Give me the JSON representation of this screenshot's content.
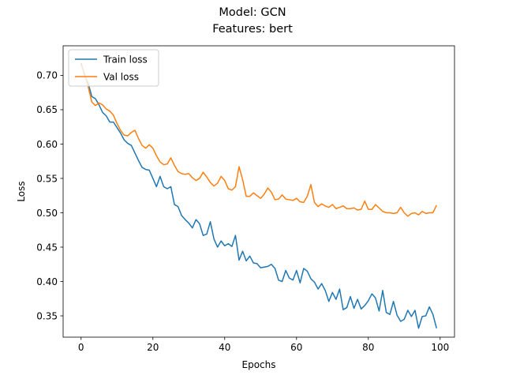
{
  "chart_data": {
    "type": "line",
    "title": "Model: GCN",
    "subtitle": "Features: bert",
    "xlabel": "Epochs",
    "ylabel": "Loss",
    "xlim": [
      -5,
      104
    ],
    "ylim": [
      0.319,
      0.743
    ],
    "xticks": [
      0,
      20,
      40,
      60,
      80,
      100
    ],
    "yticks": [
      0.35,
      0.4,
      0.45,
      0.5,
      0.55,
      0.6,
      0.65,
      0.7
    ],
    "grid": false,
    "legend_position": "top-left",
    "x": [
      0,
      1,
      2,
      3,
      4,
      5,
      6,
      7,
      8,
      9,
      10,
      11,
      12,
      13,
      14,
      15,
      16,
      17,
      18,
      19,
      20,
      21,
      22,
      23,
      24,
      25,
      26,
      27,
      28,
      29,
      30,
      31,
      32,
      33,
      34,
      35,
      36,
      37,
      38,
      39,
      40,
      41,
      42,
      43,
      44,
      45,
      46,
      47,
      48,
      49,
      50,
      51,
      52,
      53,
      54,
      55,
      56,
      57,
      58,
      59,
      60,
      61,
      62,
      63,
      64,
      65,
      66,
      67,
      68,
      69,
      70,
      71,
      72,
      73,
      74,
      75,
      76,
      77,
      78,
      79,
      80,
      81,
      82,
      83,
      84,
      85,
      86,
      87,
      88,
      89,
      90,
      91,
      92,
      93,
      94,
      95,
      96,
      97,
      98,
      99
    ],
    "series": [
      {
        "name": "Train loss",
        "color": "#1f77b4",
        "values": [
          0.718,
          0.7,
          0.688,
          0.669,
          0.666,
          0.657,
          0.646,
          0.641,
          0.632,
          0.632,
          0.624,
          0.616,
          0.606,
          0.601,
          0.598,
          0.587,
          0.576,
          0.566,
          0.563,
          0.562,
          0.55,
          0.538,
          0.553,
          0.538,
          0.535,
          0.538,
          0.512,
          0.509,
          0.496,
          0.49,
          0.485,
          0.478,
          0.49,
          0.484,
          0.467,
          0.469,
          0.487,
          0.462,
          0.45,
          0.459,
          0.452,
          0.455,
          0.451,
          0.467,
          0.431,
          0.444,
          0.43,
          0.437,
          0.427,
          0.426,
          0.42,
          0.421,
          0.422,
          0.425,
          0.419,
          0.402,
          0.4,
          0.416,
          0.405,
          0.402,
          0.416,
          0.398,
          0.419,
          0.415,
          0.404,
          0.399,
          0.389,
          0.397,
          0.387,
          0.371,
          0.384,
          0.374,
          0.389,
          0.359,
          0.362,
          0.378,
          0.361,
          0.374,
          0.36,
          0.365,
          0.372,
          0.382,
          0.376,
          0.357,
          0.387,
          0.355,
          0.352,
          0.371,
          0.351,
          0.342,
          0.345,
          0.358,
          0.349,
          0.358,
          0.332,
          0.349,
          0.35,
          0.363,
          0.352,
          0.332
        ]
      },
      {
        "name": "Val loss",
        "color": "#ff7f0e",
        "values": [
          0.716,
          0.702,
          0.683,
          0.661,
          0.656,
          0.66,
          0.657,
          0.651,
          0.648,
          0.642,
          0.63,
          0.62,
          0.613,
          0.612,
          0.617,
          0.62,
          0.608,
          0.598,
          0.594,
          0.599,
          0.594,
          0.583,
          0.574,
          0.57,
          0.571,
          0.58,
          0.569,
          0.56,
          0.557,
          0.556,
          0.557,
          0.551,
          0.547,
          0.55,
          0.559,
          0.552,
          0.544,
          0.539,
          0.543,
          0.553,
          0.547,
          0.535,
          0.533,
          0.538,
          0.567,
          0.548,
          0.524,
          0.524,
          0.529,
          0.525,
          0.521,
          0.527,
          0.536,
          0.53,
          0.519,
          0.52,
          0.526,
          0.52,
          0.519,
          0.518,
          0.521,
          0.516,
          0.515,
          0.524,
          0.541,
          0.515,
          0.509,
          0.513,
          0.51,
          0.508,
          0.512,
          0.506,
          0.508,
          0.51,
          0.506,
          0.506,
          0.507,
          0.504,
          0.505,
          0.517,
          0.505,
          0.505,
          0.512,
          0.507,
          0.502,
          0.5,
          0.5,
          0.499,
          0.5,
          0.508,
          0.5,
          0.495,
          0.499,
          0.5,
          0.497,
          0.502,
          0.499,
          0.5,
          0.5,
          0.511
        ]
      }
    ]
  }
}
